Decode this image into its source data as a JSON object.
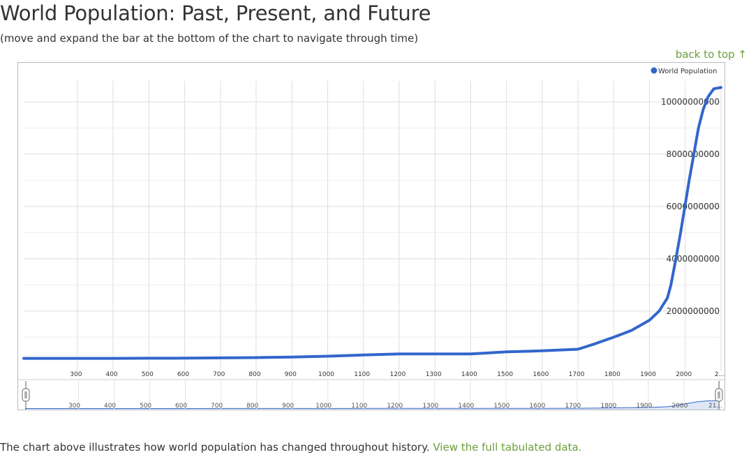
{
  "page": {
    "title": "World Population: Past, Present, and Future",
    "subtitle": "(move and expand the bar at the bottom of the chart to navigate through time)",
    "back_to_top": "back to top ↑",
    "caption_text": "The chart above illustrates how world population has changed throughout history. ",
    "caption_link": "View the full tabulated data."
  },
  "colors": {
    "series": "#3366cc",
    "link": "#6a9f3a",
    "grid": "#dddddd"
  },
  "chart_data": {
    "type": "line",
    "title": "",
    "legend": {
      "position": "top-right",
      "entries": [
        "World Population"
      ]
    },
    "x_ticks": [
      "300",
      "400",
      "500",
      "600",
      "700",
      "800",
      "900",
      "1000",
      "1100",
      "1200",
      "1300",
      "1400",
      "1500",
      "1600",
      "1700",
      "1800",
      "1900",
      "2000",
      "2..."
    ],
    "y_ticks": [
      "2000000000",
      "4000000000",
      "6000000000",
      "8000000000",
      "10000000000"
    ],
    "xlim": [
      150,
      2100
    ],
    "ylim": [
      -300000000,
      10800000000
    ],
    "grid": true,
    "series": [
      {
        "name": "World Population",
        "x": [
          150,
          300,
          400,
          500,
          600,
          700,
          800,
          900,
          1000,
          1100,
          1200,
          1300,
          1400,
          1500,
          1600,
          1700,
          1750,
          1800,
          1850,
          1900,
          1927,
          1950,
          1960,
          1974,
          1987,
          1999,
          2011,
          2024,
          2037,
          2050,
          2064,
          2080,
          2100
        ],
        "y": [
          190000000,
          190000000,
          190000000,
          195000000,
          200000000,
          210000000,
          220000000,
          240000000,
          275000000,
          320000000,
          360000000,
          360000000,
          360000000,
          440000000,
          480000000,
          540000000,
          760000000,
          1000000000,
          1260000000,
          1650000000,
          2000000000,
          2500000000,
          3000000000,
          4000000000,
          5000000000,
          6000000000,
          7000000000,
          8000000000,
          9000000000,
          9700000000,
          10200000000,
          10500000000,
          10550000000
        ]
      }
    ],
    "navigator": {
      "ticks": [
        "300",
        "400",
        "500",
        "600",
        "700",
        "800",
        "900",
        "1000",
        "1100",
        "1200",
        "1300",
        "1400",
        "1500",
        "1600",
        "1700",
        "1800",
        "1900",
        "2000",
        "21..."
      ]
    }
  }
}
